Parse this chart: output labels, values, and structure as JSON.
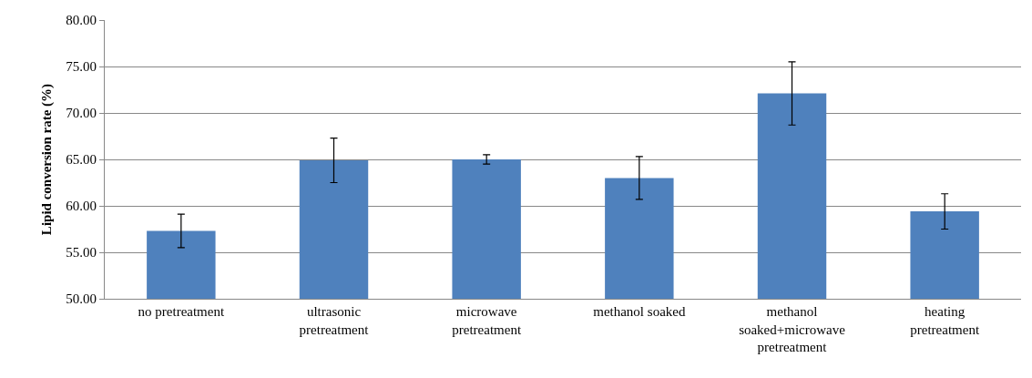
{
  "chart_data": {
    "type": "bar",
    "ylabel": "Lipid conversion rate (%)",
    "categories": [
      "no pretreatment",
      "ultrasonic pretreatment",
      "microwave pretreatment",
      "methanol soaked",
      "methanol soaked+microwave pretreatment",
      "heating pretreatment"
    ],
    "values": [
      57.3,
      64.9,
      65.0,
      63.0,
      72.1,
      59.4
    ],
    "errors": [
      1.8,
      2.4,
      0.5,
      2.3,
      3.4,
      1.9
    ],
    "color": "#4f81bd",
    "ylim": [
      50,
      80
    ],
    "yticks": [
      {
        "value": 50,
        "label": "50.00"
      },
      {
        "value": 55,
        "label": "55.00"
      },
      {
        "value": 60,
        "label": "60.00"
      },
      {
        "value": 65,
        "label": "65.00"
      },
      {
        "value": 70,
        "label": "70.00"
      },
      {
        "value": 75,
        "label": "75.00"
      },
      {
        "value": 80,
        "label": "80.00"
      }
    ],
    "grid": "y",
    "legend": false
  }
}
